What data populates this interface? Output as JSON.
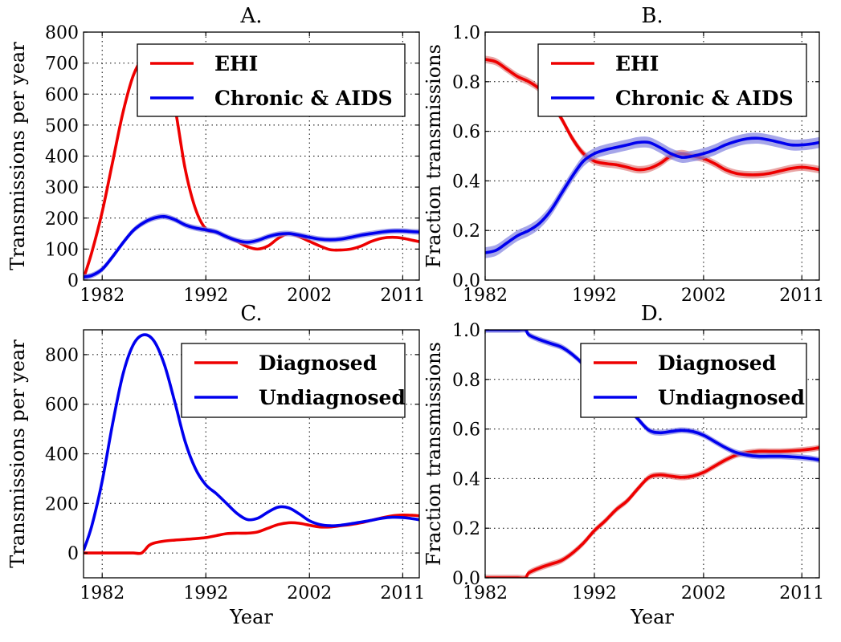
{
  "chart_data": [
    {
      "type": "line",
      "title": "A.",
      "xlabel": "",
      "ylabel": "Transmissions per year",
      "xlim": [
        1980.2,
        2012.6
      ],
      "ylim": [
        0,
        800
      ],
      "xticks": [
        1982,
        1992,
        2002,
        2011
      ],
      "yticks": [
        0,
        100,
        200,
        300,
        400,
        500,
        600,
        700,
        800
      ],
      "ytick_format": "int",
      "grid": true,
      "legend_position": "top-right",
      "series": [
        {
          "name": "EHI",
          "color": "#ee0000",
          "band": false,
          "x": [
            1980.2,
            1981,
            1982,
            1983,
            1984,
            1985,
            1986,
            1987,
            1988,
            1989,
            1990,
            1991,
            1992,
            1993,
            1994,
            1995,
            1996,
            1997,
            1998,
            1999,
            2000,
            2001,
            2002,
            2003,
            2004,
            2005,
            2006,
            2007,
            2008,
            2009,
            2010,
            2011,
            2012,
            2012.6
          ],
          "y": [
            5,
            90,
            220,
            380,
            540,
            660,
            720,
            740,
            690,
            560,
            360,
            230,
            165,
            155,
            140,
            125,
            108,
            100,
            110,
            135,
            150,
            140,
            125,
            110,
            98,
            97,
            100,
            110,
            125,
            135,
            138,
            135,
            128,
            124
          ]
        },
        {
          "name": "Chronic & AIDS",
          "color": "#0000ee",
          "band": true,
          "band_width": 9,
          "x": [
            1980.2,
            1981,
            1982,
            1983,
            1984,
            1985,
            1986,
            1987,
            1988,
            1989,
            1990,
            1991,
            1992,
            1993,
            1994,
            1995,
            1996,
            1997,
            1998,
            1999,
            2000,
            2001,
            2002,
            2003,
            2004,
            2005,
            2006,
            2007,
            2008,
            2009,
            2010,
            2011,
            2012,
            2012.6
          ],
          "y": [
            10,
            15,
            35,
            75,
            120,
            160,
            185,
            200,
            205,
            195,
            178,
            168,
            162,
            155,
            140,
            128,
            122,
            128,
            140,
            148,
            150,
            145,
            138,
            132,
            130,
            132,
            138,
            145,
            150,
            155,
            158,
            158,
            156,
            155
          ]
        }
      ]
    },
    {
      "type": "line",
      "title": "B.",
      "xlabel": "",
      "ylabel": "Fraction transmissions",
      "xlim": [
        1982,
        2012.6
      ],
      "ylim": [
        0,
        1
      ],
      "xticks": [
        1982,
        1992,
        2002,
        2011
      ],
      "yticks": [
        0.0,
        0.2,
        0.4,
        0.6,
        0.8,
        1.0
      ],
      "ytick_format": "1dp",
      "grid": true,
      "legend_position": "top-right",
      "series": [
        {
          "name": "EHI",
          "color": "#ee0000",
          "band": true,
          "band_width": 0.015,
          "x": [
            1982,
            1983,
            1984,
            1985,
            1986,
            1987,
            1988,
            1989,
            1990,
            1991,
            1992,
            1993,
            1994,
            1995,
            1996,
            1997,
            1998,
            1999,
            2000,
            2001,
            2002,
            2003,
            2004,
            2005,
            2006,
            2007,
            2008,
            2009,
            2010,
            2011,
            2012,
            2012.6
          ],
          "y": [
            0.89,
            0.88,
            0.85,
            0.82,
            0.8,
            0.77,
            0.72,
            0.65,
            0.57,
            0.51,
            0.48,
            0.47,
            0.465,
            0.455,
            0.445,
            0.45,
            0.47,
            0.5,
            0.51,
            0.5,
            0.49,
            0.47,
            0.445,
            0.43,
            0.425,
            0.425,
            0.43,
            0.44,
            0.45,
            0.455,
            0.45,
            0.445
          ]
        },
        {
          "name": "Chronic & AIDS",
          "color": "#0000ee",
          "band": true,
          "band_width": 0.022,
          "x": [
            1982,
            1983,
            1984,
            1985,
            1986,
            1987,
            1988,
            1989,
            1990,
            1991,
            1992,
            1993,
            1994,
            1995,
            1996,
            1997,
            1998,
            1999,
            2000,
            2001,
            2002,
            2003,
            2004,
            2005,
            2006,
            2007,
            2008,
            2009,
            2010,
            2011,
            2012,
            2012.6
          ],
          "y": [
            0.11,
            0.12,
            0.15,
            0.18,
            0.2,
            0.23,
            0.28,
            0.35,
            0.42,
            0.48,
            0.51,
            0.525,
            0.535,
            0.545,
            0.555,
            0.555,
            0.535,
            0.51,
            0.495,
            0.5,
            0.51,
            0.525,
            0.545,
            0.56,
            0.57,
            0.572,
            0.565,
            0.555,
            0.545,
            0.545,
            0.55,
            0.555
          ]
        }
      ]
    },
    {
      "type": "line",
      "title": "C.",
      "xlabel": "Year",
      "ylabel": "Transmissions per year",
      "xlim": [
        1980.2,
        2012.6
      ],
      "ylim": [
        -100,
        900
      ],
      "xticks": [
        1982,
        1992,
        2002,
        2011
      ],
      "yticks": [
        0,
        200,
        400,
        600,
        800
      ],
      "ytick_format": "int",
      "grid": true,
      "legend_position": "top-right",
      "series": [
        {
          "name": "Diagnosed",
          "color": "#ee0000",
          "band": false,
          "x": [
            1980.2,
            1982,
            1983,
            1984,
            1985,
            1985.8,
            1986.5,
            1987,
            1988,
            1989,
            1990,
            1991,
            1992,
            1993,
            1994,
            1995,
            1996,
            1997,
            1998,
            1999,
            2000,
            2001,
            2002,
            2003,
            2004,
            2005,
            2006,
            2007,
            2008,
            2009,
            2010,
            2011,
            2012,
            2012.6
          ],
          "y": [
            0,
            0,
            0,
            0,
            0,
            0,
            30,
            40,
            48,
            52,
            55,
            58,
            62,
            70,
            78,
            80,
            80,
            85,
            100,
            115,
            122,
            120,
            112,
            105,
            105,
            110,
            115,
            122,
            132,
            142,
            150,
            153,
            152,
            150
          ]
        },
        {
          "name": "Undiagnosed",
          "color": "#0000ee",
          "band": false,
          "x": [
            1980.2,
            1981,
            1982,
            1983,
            1984,
            1985,
            1986,
            1987,
            1988,
            1989,
            1990,
            1991,
            1992,
            1993,
            1994,
            1995,
            1996,
            1997,
            1998,
            1999,
            2000,
            2001,
            2002,
            2003,
            2004,
            2005,
            2006,
            2007,
            2008,
            2009,
            2010,
            2011,
            2012,
            2012.6
          ],
          "y": [
            10,
            110,
            290,
            520,
            720,
            840,
            880,
            855,
            760,
            610,
            450,
            340,
            275,
            240,
            200,
            160,
            135,
            140,
            165,
            185,
            182,
            158,
            130,
            115,
            110,
            112,
            118,
            125,
            132,
            140,
            144,
            143,
            138,
            134
          ]
        }
      ]
    },
    {
      "type": "line",
      "title": "D.",
      "xlabel": "Year",
      "ylabel": "Fraction transmissions",
      "xlim": [
        1982,
        2012.6
      ],
      "ylim": [
        0,
        1
      ],
      "xticks": [
        1982,
        1992,
        2002,
        2011
      ],
      "yticks": [
        0.0,
        0.2,
        0.4,
        0.6,
        0.8,
        1.0
      ],
      "ytick_format": "1dp",
      "grid": true,
      "legend_position": "top-right",
      "series": [
        {
          "name": "Diagnosed",
          "color": "#ee0000",
          "band": true,
          "band_width": 0.012,
          "x": [
            1982,
            1983,
            1984,
            1985,
            1985.7,
            1986,
            1987,
            1988,
            1989,
            1990,
            1991,
            1992,
            1993,
            1994,
            1995,
            1996,
            1997,
            1998,
            1999,
            2000,
            2001,
            2002,
            2003,
            2004,
            2005,
            2006,
            2007,
            2008,
            2009,
            2010,
            2011,
            2012,
            2012.6
          ],
          "y": [
            0,
            0,
            0,
            0,
            0,
            0.02,
            0.04,
            0.055,
            0.07,
            0.1,
            0.14,
            0.19,
            0.23,
            0.275,
            0.31,
            0.36,
            0.405,
            0.415,
            0.41,
            0.405,
            0.41,
            0.425,
            0.45,
            0.475,
            0.495,
            0.505,
            0.51,
            0.51,
            0.51,
            0.512,
            0.515,
            0.52,
            0.525
          ]
        },
        {
          "name": "Undiagnosed",
          "color": "#0000ee",
          "band": true,
          "band_width": 0.012,
          "x": [
            1982,
            1983,
            1984,
            1985,
            1985.7,
            1986,
            1987,
            1988,
            1989,
            1990,
            1991,
            1992,
            1993,
            1994,
            1995,
            1996,
            1997,
            1998,
            1999,
            2000,
            2001,
            2002,
            2003,
            2004,
            2005,
            2006,
            2007,
            2008,
            2009,
            2010,
            2011,
            2012,
            2012.6
          ],
          "y": [
            1,
            1,
            1,
            1,
            1,
            0.98,
            0.96,
            0.945,
            0.93,
            0.9,
            0.86,
            0.81,
            0.77,
            0.725,
            0.69,
            0.64,
            0.595,
            0.585,
            0.59,
            0.595,
            0.59,
            0.575,
            0.55,
            0.525,
            0.505,
            0.495,
            0.49,
            0.49,
            0.49,
            0.488,
            0.485,
            0.48,
            0.475
          ]
        }
      ]
    }
  ]
}
